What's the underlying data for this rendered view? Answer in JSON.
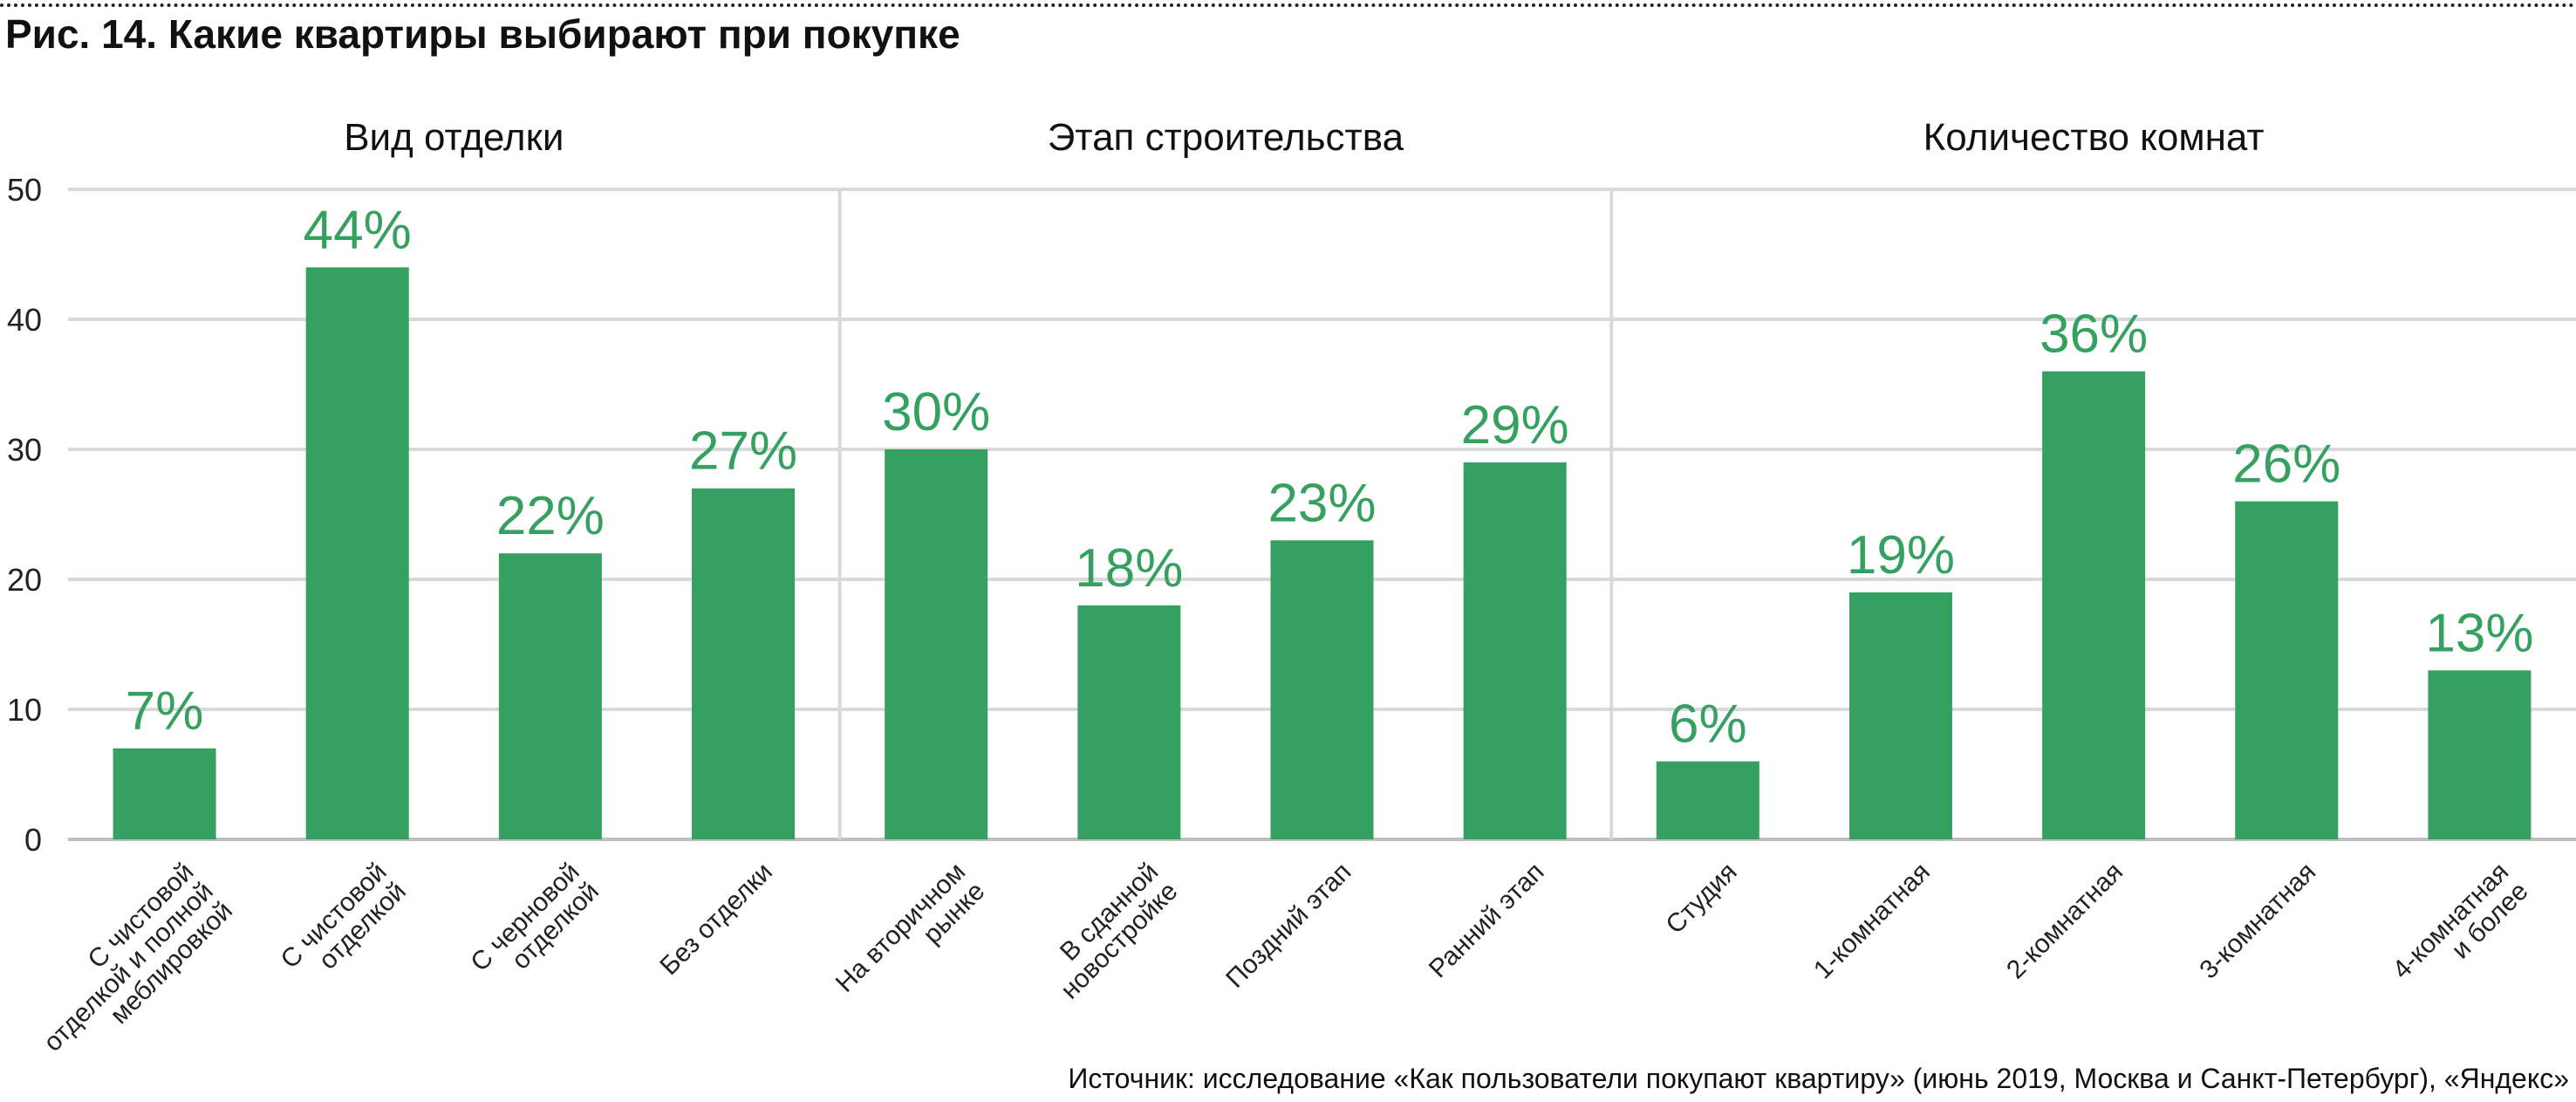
{
  "title": "Рис. 14. Какие квартиры выбирают при покупке",
  "source": "Источник: исследование «Как пользователи покупают квартиру» (июнь 2019, Москва и Санкт-Петербург), «Яндекс»",
  "colors": {
    "bar": "#35a060",
    "label": "#35a060",
    "grid": "#d9d9d9",
    "text": "#222222"
  },
  "chart_data": {
    "type": "bar",
    "ylim": [
      0,
      50
    ],
    "yticks": [
      0,
      10,
      20,
      30,
      40,
      50
    ],
    "grid": true,
    "groups": [
      {
        "name": "Вид отделки",
        "categories": [
          "С чистовой\nотделкой и полной\nмеблировкой",
          "С чистовой\nотделкой",
          "С черновой\nотделкой",
          "Без отделки"
        ],
        "values": [
          7,
          44,
          22,
          27
        ],
        "labels": [
          "7%",
          "44%",
          "22%",
          "27%"
        ]
      },
      {
        "name": "Этап строительства",
        "categories": [
          "На вторичном\nрынке",
          "В сданной\nновостройке",
          "Поздний этап",
          "Ранний этап"
        ],
        "values": [
          30,
          18,
          23,
          29
        ],
        "labels": [
          "30%",
          "18%",
          "23%",
          "29%"
        ]
      },
      {
        "name": "Количество комнат",
        "categories": [
          "Студия",
          "1-комнатная",
          "2-комнатная",
          "3-комнатная",
          "4-комнатная\nи более"
        ],
        "values": [
          6,
          19,
          36,
          26,
          13
        ],
        "labels": [
          "6%",
          "19%",
          "36%",
          "26%",
          "13%"
        ]
      }
    ]
  }
}
